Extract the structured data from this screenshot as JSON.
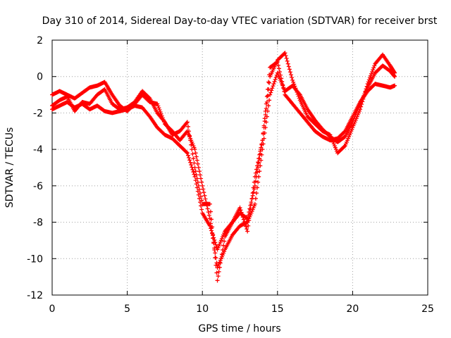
{
  "chart_data": {
    "type": "scatter",
    "title": "Day 310 of 2014, Sidereal Day-to-day VTEC variation (SDTVAR) for receiver brst",
    "xlabel": "GPS time / hours",
    "ylabel": "SDTVAR / TECUs",
    "xlim": [
      0,
      25
    ],
    "ylim": [
      -12,
      2
    ],
    "xticks": [
      "0",
      "5",
      "10",
      "15",
      "20",
      "25"
    ],
    "yticks": [
      "2",
      "0",
      "-2",
      "-4",
      "-6",
      "-8",
      "-10",
      "-12"
    ],
    "grid": true,
    "marker": "plus",
    "color": "#ff0000",
    "series": [
      {
        "x": [
          0.0,
          0.5,
          1.0,
          1.5,
          2.0,
          2.5,
          3.0,
          3.5,
          4.0,
          4.5,
          5.0,
          5.5,
          6.0,
          6.5,
          7.0,
          7.5,
          8.0,
          8.5,
          9.0,
          9.5,
          10.0,
          10.5,
          11.0,
          11.5,
          12.0,
          12.5,
          13.0,
          13.5,
          14.0,
          14.5,
          15.0,
          15.5,
          16.0,
          16.5,
          17.0,
          17.5,
          18.0,
          18.5,
          19.0,
          19.5,
          20.0,
          20.5,
          21.0,
          21.5,
          22.0,
          22.5,
          22.8
        ],
        "y": [
          -1.8,
          -1.6,
          -1.4,
          -1.7,
          -1.5,
          -1.8,
          -1.6,
          -1.9,
          -2.0,
          -1.9,
          -1.8,
          -1.6,
          -1.7,
          -2.2,
          -2.8,
          -3.2,
          -3.4,
          -3.8,
          -4.2,
          -5.5,
          -7.5,
          -8.2,
          -9.5,
          -8.5,
          -8.0,
          -7.5,
          -7.8,
          -6.0,
          -3.5,
          0.5,
          0.8,
          -1.0,
          -1.5,
          -2.0,
          -2.5,
          -3.0,
          -3.3,
          -3.5,
          -3.4,
          -3.0,
          -2.2,
          -1.4,
          -0.8,
          -0.4,
          -0.5,
          -0.6,
          -0.5
        ]
      },
      {
        "x": [
          0.0,
          0.5,
          1.0,
          1.5,
          2.0,
          2.5,
          3.0,
          3.5,
          4.0,
          4.5,
          5.0,
          5.5,
          6.0,
          6.5,
          7.0,
          7.5,
          8.0,
          8.5,
          9.0,
          9.5,
          10.0,
          10.5,
          11.0,
          11.5,
          12.0,
          12.5,
          13.0,
          13.5,
          14.0,
          14.5,
          15.0,
          15.5,
          16.0,
          16.5,
          17.0,
          17.5,
          18.0,
          18.5,
          19.0,
          19.5,
          20.0,
          20.5,
          21.0,
          21.5,
          22.0,
          22.5,
          22.8
        ],
        "y": [
          -1.0,
          -0.8,
          -1.0,
          -1.2,
          -0.9,
          -0.6,
          -0.5,
          -0.3,
          -1.0,
          -1.6,
          -1.9,
          -1.5,
          -1.0,
          -1.4,
          -1.5,
          -2.6,
          -3.0,
          -3.5,
          -3.0,
          -4.0,
          -6.0,
          -7.8,
          -10.5,
          -9.5,
          -8.7,
          -8.2,
          -8.0,
          -7.0,
          -4.0,
          -1.0,
          0.2,
          -0.8,
          -0.5,
          -1.0,
          -1.8,
          -2.4,
          -2.9,
          -3.3,
          -3.6,
          -3.3,
          -2.5,
          -1.5,
          -0.6,
          0.2,
          0.6,
          0.3,
          0.0
        ]
      },
      {
        "x": [
          0.0,
          0.5,
          1.0,
          1.5,
          2.0,
          2.5,
          3.0,
          3.5,
          4.0,
          4.5,
          5.0,
          5.5,
          6.0,
          6.5,
          7.0,
          7.5,
          8.0,
          8.5,
          9.0,
          9.5,
          10.0,
          10.5,
          11.0,
          11.5,
          12.0,
          12.5,
          13.0,
          13.5,
          14.0,
          14.5,
          15.0,
          15.5,
          16.0,
          16.5,
          17.0,
          17.5,
          18.0,
          18.5,
          19.0,
          19.5,
          20.0,
          20.5,
          21.0,
          21.5,
          22.0,
          22.5,
          22.8
        ],
        "y": [
          -1.6,
          -1.3,
          -1.1,
          -1.9,
          -1.4,
          -1.5,
          -1.0,
          -0.7,
          -1.5,
          -1.8,
          -1.7,
          -1.4,
          -0.8,
          -1.2,
          -2.0,
          -2.5,
          -3.2,
          -3.0,
          -2.5,
          -5.0,
          -7.0,
          -7.0,
          -11.2,
          -8.8,
          -8.0,
          -7.2,
          -8.5,
          -5.5,
          -3.5,
          0.0,
          0.9,
          1.3,
          -0.2,
          -1.3,
          -2.2,
          -2.6,
          -3.0,
          -3.2,
          -4.2,
          -3.8,
          -2.8,
          -1.8,
          -0.4,
          0.7,
          1.2,
          0.6,
          0.2
        ]
      }
    ]
  }
}
